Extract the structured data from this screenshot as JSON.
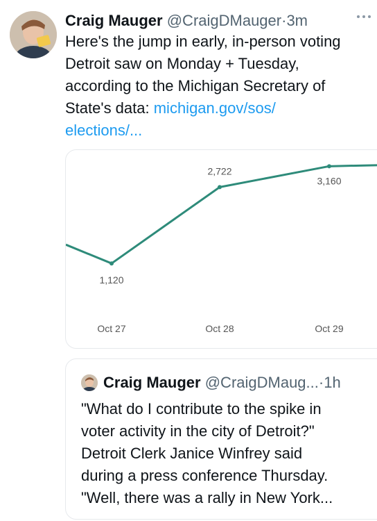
{
  "tweet": {
    "author_name": "Craig Mauger",
    "handle": "@CraigDMauger",
    "separator": "·",
    "time": "3m",
    "more_icon": "ellipsis-icon",
    "text_lines": [
      "Here's the jump in early, in-person voting",
      "Detroit saw on Monday + Tuesday,",
      "according to the Michigan Secretary of"
    ],
    "text_line4_prefix": "State's data: ",
    "link_part1": "michigan.gov/sos/",
    "link_part2": "elections/..."
  },
  "chart_data": {
    "type": "line",
    "categories": [
      "Oct 27",
      "Oct 28",
      "Oct 29"
    ],
    "series": [
      {
        "values": [
          1120,
          2722,
          3160
        ]
      }
    ],
    "data_labels": [
      "1,120",
      "2,722",
      "3,160"
    ],
    "line_color": "#2e8b7a"
  },
  "quote": {
    "author_name": "Craig Mauger",
    "handle": "@CraigDMaug...",
    "separator": "·",
    "time": "1h",
    "text_lines": [
      "\"What do I contribute to the spike in",
      "voter activity in the city of Detroit?\"",
      "Detroit Clerk Janice Winfrey said",
      "during a press conference Thursday.",
      "\"Well, there was a rally in New York..."
    ]
  }
}
